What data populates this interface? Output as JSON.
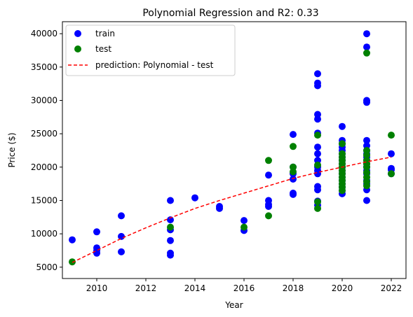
{
  "chart_data": {
    "type": "scatter",
    "title": "Polynomial Regression and R2: 0.33",
    "xlabel": "Year",
    "ylabel": "Price ($)",
    "xlim": [
      2008.6,
      2022.6
    ],
    "ylim": [
      3300,
      41800
    ],
    "xticks": [
      2010,
      2012,
      2014,
      2016,
      2018,
      2020,
      2022
    ],
    "yticks": [
      5000,
      10000,
      15000,
      20000,
      25000,
      30000,
      35000,
      40000
    ],
    "grid": false,
    "legend_position": "top-left",
    "series": [
      {
        "name": "train",
        "kind": "scatter",
        "color": "#0000ff",
        "points": [
          [
            2009,
            9100
          ],
          [
            2010,
            10300
          ],
          [
            2010,
            7900
          ],
          [
            2010,
            7500
          ],
          [
            2010,
            7100
          ],
          [
            2011,
            12700
          ],
          [
            2011,
            9600
          ],
          [
            2011,
            7300
          ],
          [
            2013,
            15000
          ],
          [
            2013,
            12100
          ],
          [
            2013,
            10600
          ],
          [
            2013,
            9000
          ],
          [
            2013,
            7100
          ],
          [
            2013,
            6800
          ],
          [
            2014,
            15400
          ],
          [
            2015,
            14100
          ],
          [
            2015,
            13800
          ],
          [
            2016,
            12000
          ],
          [
            2016,
            10500
          ],
          [
            2017,
            18800
          ],
          [
            2017,
            15000
          ],
          [
            2017,
            14400
          ],
          [
            2017,
            14100
          ],
          [
            2018,
            24900
          ],
          [
            2018,
            20000
          ],
          [
            2018,
            19000
          ],
          [
            2018,
            18200
          ],
          [
            2018,
            16100
          ],
          [
            2018,
            15900
          ],
          [
            2019,
            34000
          ],
          [
            2019,
            32600
          ],
          [
            2019,
            32200
          ],
          [
            2019,
            27900
          ],
          [
            2019,
            27200
          ],
          [
            2019,
            25100
          ],
          [
            2019,
            23000
          ],
          [
            2019,
            22000
          ],
          [
            2019,
            21000
          ],
          [
            2019,
            20000
          ],
          [
            2019,
            19500
          ],
          [
            2019,
            19000
          ],
          [
            2019,
            17100
          ],
          [
            2019,
            16600
          ],
          [
            2019,
            14900
          ],
          [
            2019,
            14300
          ],
          [
            2020,
            26100
          ],
          [
            2020,
            24000
          ],
          [
            2020,
            23500
          ],
          [
            2020,
            23000
          ],
          [
            2020,
            22500
          ],
          [
            2020,
            22000
          ],
          [
            2020,
            21500
          ],
          [
            2020,
            21000
          ],
          [
            2020,
            20500
          ],
          [
            2020,
            20000
          ],
          [
            2020,
            19500
          ],
          [
            2020,
            19000
          ],
          [
            2020,
            18500
          ],
          [
            2020,
            18000
          ],
          [
            2020,
            17500
          ],
          [
            2020,
            17000
          ],
          [
            2020,
            16500
          ],
          [
            2020,
            16000
          ],
          [
            2021,
            40000
          ],
          [
            2021,
            38000
          ],
          [
            2021,
            30000
          ],
          [
            2021,
            29700
          ],
          [
            2021,
            24000
          ],
          [
            2021,
            23200
          ],
          [
            2021,
            22500
          ],
          [
            2021,
            22000
          ],
          [
            2021,
            21500
          ],
          [
            2021,
            21000
          ],
          [
            2021,
            20500
          ],
          [
            2021,
            20000
          ],
          [
            2021,
            19500
          ],
          [
            2021,
            19000
          ],
          [
            2021,
            18000
          ],
          [
            2021,
            17500
          ],
          [
            2021,
            16600
          ],
          [
            2021,
            15000
          ],
          [
            2022,
            22000
          ],
          [
            2022,
            19800
          ],
          [
            2022,
            19600
          ],
          [
            2022,
            19000
          ]
        ]
      },
      {
        "name": "test",
        "kind": "scatter",
        "color": "#008000",
        "points": [
          [
            2009,
            5800
          ],
          [
            2013,
            11000
          ],
          [
            2016,
            11000
          ],
          [
            2017,
            21000
          ],
          [
            2017,
            12700
          ],
          [
            2018,
            23100
          ],
          [
            2018,
            20000
          ],
          [
            2018,
            19300
          ],
          [
            2019,
            24800
          ],
          [
            2019,
            20300
          ],
          [
            2019,
            14800
          ],
          [
            2019,
            13800
          ],
          [
            2020,
            23500
          ],
          [
            2020,
            22000
          ],
          [
            2020,
            21500
          ],
          [
            2020,
            21000
          ],
          [
            2020,
            20500
          ],
          [
            2020,
            20000
          ],
          [
            2020,
            19500
          ],
          [
            2020,
            19000
          ],
          [
            2020,
            18500
          ],
          [
            2020,
            18000
          ],
          [
            2020,
            17500
          ],
          [
            2020,
            17000
          ],
          [
            2020,
            16500
          ],
          [
            2021,
            37100
          ],
          [
            2021,
            22500
          ],
          [
            2021,
            21800
          ],
          [
            2021,
            21000
          ],
          [
            2021,
            20500
          ],
          [
            2021,
            20000
          ],
          [
            2021,
            19200
          ],
          [
            2021,
            18500
          ],
          [
            2021,
            17800
          ],
          [
            2021,
            17200
          ],
          [
            2022,
            24800
          ],
          [
            2022,
            19000
          ]
        ]
      },
      {
        "name": "prediction: Polynomial - test",
        "kind": "line",
        "style": "dashed",
        "color": "#ff0000",
        "points": [
          [
            2009,
            5700
          ],
          [
            2010,
            7500
          ],
          [
            2011,
            9300
          ],
          [
            2012,
            10900
          ],
          [
            2013,
            12400
          ],
          [
            2014,
            13800
          ],
          [
            2015,
            15000
          ],
          [
            2016,
            16100
          ],
          [
            2017,
            17200
          ],
          [
            2018,
            18300
          ],
          [
            2019,
            19200
          ],
          [
            2020,
            20000
          ],
          [
            2021,
            20800
          ],
          [
            2022,
            21500
          ]
        ]
      }
    ]
  }
}
